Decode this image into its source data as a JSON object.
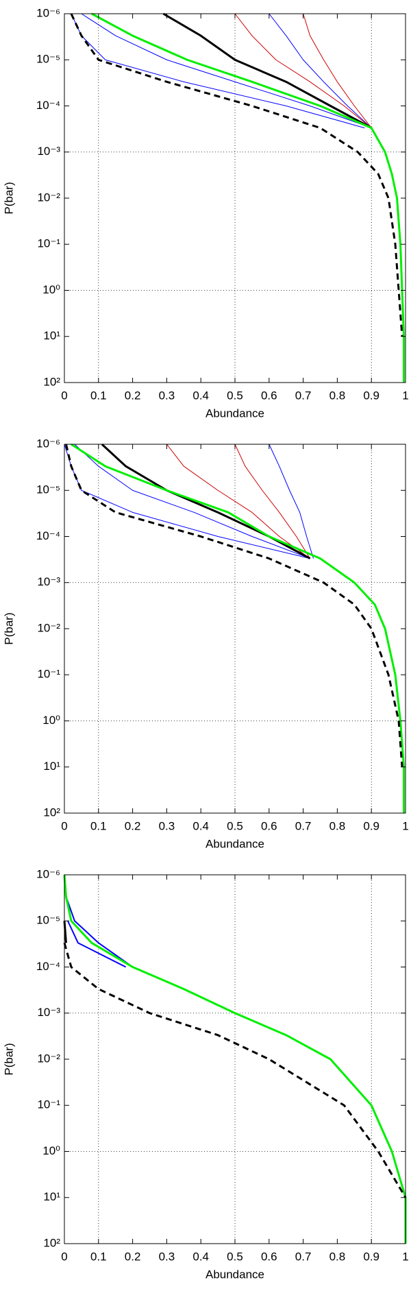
{
  "chart_data": [
    {
      "type": "line",
      "xlabel": "Abundance",
      "ylabel": "P(bar)",
      "xlim": [
        0,
        1
      ],
      "xticks": [
        0,
        0.1,
        0.2,
        0.3,
        0.4,
        0.5,
        0.6,
        0.7,
        0.8,
        0.9,
        1
      ],
      "ylim": [
        1e-06,
        100
      ],
      "log_y": true,
      "yticks": [
        {
          "value": 1e-06,
          "label": "10⁻⁶"
        },
        {
          "value": 1e-05,
          "label": "10⁻⁵"
        },
        {
          "value": 0.0001,
          "label": "10⁻⁴"
        },
        {
          "value": 0.001,
          "label": "10⁻³"
        },
        {
          "value": 0.01,
          "label": "10⁻²"
        },
        {
          "value": 0.1,
          "label": "10⁻¹"
        },
        {
          "value": 1,
          "label": "10⁰"
        },
        {
          "value": 10,
          "label": "10¹"
        },
        {
          "value": 100,
          "label": "10²"
        }
      ],
      "grid_x": [
        0.1,
        0.5,
        0.9
      ],
      "grid_y": [
        0.001,
        1
      ],
      "y": [
        1e-06,
        3e-06,
        1e-05,
        3e-05,
        0.0001,
        0.0003,
        0.001,
        0.003,
        0.01,
        0.1,
        1,
        10,
        100
      ],
      "series": [
        {
          "color": "#0000ff",
          "linewidth": 1,
          "x": [
            0.02,
            0.05,
            0.12,
            0.35,
            0.65,
            0.88,
            null,
            null,
            null,
            null,
            null,
            null,
            null
          ]
        },
        {
          "color": "#0000ff",
          "linewidth": 1,
          "x": [
            0.05,
            0.15,
            0.3,
            0.5,
            0.72,
            0.9,
            null,
            null,
            null,
            null,
            null,
            null,
            null
          ]
        },
        {
          "color": "#0000ff",
          "linewidth": 1,
          "x": [
            0.6,
            0.65,
            0.7,
            0.76,
            0.83,
            0.9,
            null,
            null,
            null,
            null,
            null,
            null,
            null
          ]
        },
        {
          "color": "#cc0000",
          "linewidth": 1,
          "x": [
            0.5,
            0.55,
            0.62,
            0.72,
            0.82,
            0.9,
            null,
            null,
            null,
            null,
            null,
            null,
            null
          ]
        },
        {
          "color": "#cc0000",
          "linewidth": 1,
          "x": [
            0.7,
            0.72,
            0.76,
            0.8,
            0.85,
            0.9,
            null,
            null,
            null,
            null,
            null,
            null,
            null
          ]
        },
        {
          "color": "#000000",
          "linewidth": 3,
          "x": [
            0.29,
            0.4,
            0.5,
            0.65,
            0.78,
            0.9,
            null,
            null,
            null,
            null,
            null,
            null,
            null
          ]
        },
        {
          "color": "#00ee00",
          "linewidth": 3,
          "x": [
            0.08,
            0.2,
            0.36,
            0.55,
            0.75,
            0.9,
            0.94,
            0.96,
            0.975,
            0.985,
            0.99,
            0.995,
            0.995
          ]
        },
        {
          "color": "#000000",
          "linewidth": 3,
          "dashed": true,
          "x": [
            0.02,
            0.05,
            0.1,
            0.3,
            0.55,
            0.75,
            0.86,
            0.92,
            0.95,
            0.97,
            0.98,
            0.99,
            null
          ]
        }
      ]
    },
    {
      "type": "line",
      "xlabel": "Abundance",
      "ylabel": "P(bar)",
      "xlim": [
        0,
        1
      ],
      "xticks": [
        0,
        0.1,
        0.2,
        0.3,
        0.4,
        0.5,
        0.6,
        0.7,
        0.8,
        0.9,
        1
      ],
      "ylim": [
        1e-06,
        100
      ],
      "log_y": true,
      "yticks": [
        {
          "value": 1e-06,
          "label": "10⁻⁶"
        },
        {
          "value": 1e-05,
          "label": "10⁻⁵"
        },
        {
          "value": 0.0001,
          "label": "10⁻⁴"
        },
        {
          "value": 0.001,
          "label": "10⁻³"
        },
        {
          "value": 0.01,
          "label": "10⁻²"
        },
        {
          "value": 0.1,
          "label": "10⁻¹"
        },
        {
          "value": 1,
          "label": "10⁰"
        },
        {
          "value": 10,
          "label": "10¹"
        },
        {
          "value": 100,
          "label": "10²"
        }
      ],
      "grid_x": [
        0.1,
        0.5,
        0.9
      ],
      "grid_y": [
        0.001,
        1
      ],
      "y": [
        1e-06,
        3e-06,
        1e-05,
        3e-05,
        0.0001,
        0.0003,
        0.001,
        0.003,
        0.01,
        0.1,
        1,
        10,
        100
      ],
      "series": [
        {
          "color": "#0000ff",
          "linewidth": 1,
          "x": [
            0.0,
            0.02,
            0.05,
            0.2,
            0.45,
            0.72,
            null,
            null,
            null,
            null,
            null,
            null,
            null
          ]
        },
        {
          "color": "#0000ff",
          "linewidth": 1,
          "x": [
            0.03,
            0.1,
            0.2,
            0.38,
            0.55,
            0.72,
            null,
            null,
            null,
            null,
            null,
            null,
            null
          ]
        },
        {
          "color": "#0000ff",
          "linewidth": 1,
          "x": [
            0.6,
            0.63,
            0.66,
            0.69,
            0.71,
            0.73,
            null,
            null,
            null,
            null,
            null,
            null,
            null
          ]
        },
        {
          "color": "#cc0000",
          "linewidth": 1,
          "x": [
            0.3,
            0.35,
            0.45,
            0.55,
            0.63,
            0.72,
            null,
            null,
            null,
            null,
            null,
            null,
            null
          ]
        },
        {
          "color": "#cc0000",
          "linewidth": 1,
          "x": [
            0.5,
            0.53,
            0.58,
            0.63,
            0.68,
            0.72,
            null,
            null,
            null,
            null,
            null,
            null,
            null
          ]
        },
        {
          "color": "#000000",
          "linewidth": 3,
          "x": [
            0.11,
            0.18,
            0.3,
            0.45,
            0.6,
            0.72,
            null,
            null,
            null,
            null,
            null,
            null,
            null
          ]
        },
        {
          "color": "#00ee00",
          "linewidth": 3,
          "x": [
            0.02,
            0.12,
            0.3,
            0.48,
            0.6,
            0.75,
            0.85,
            0.91,
            0.94,
            0.97,
            0.985,
            0.995,
            0.995
          ]
        },
        {
          "color": "#000000",
          "linewidth": 3,
          "dashed": true,
          "x": [
            0.005,
            0.02,
            0.05,
            0.15,
            0.4,
            0.6,
            0.76,
            0.85,
            0.9,
            0.95,
            0.98,
            0.99,
            null
          ]
        }
      ]
    },
    {
      "type": "line",
      "xlabel": "Abundance",
      "ylabel": "P(bar)",
      "xlim": [
        0,
        1
      ],
      "xticks": [
        0,
        0.1,
        0.2,
        0.3,
        0.4,
        0.5,
        0.6,
        0.7,
        0.8,
        0.9,
        1
      ],
      "ylim": [
        1e-06,
        100
      ],
      "log_y": true,
      "yticks": [
        {
          "value": 1e-06,
          "label": "10⁻⁶"
        },
        {
          "value": 1e-05,
          "label": "10⁻⁵"
        },
        {
          "value": 0.0001,
          "label": "10⁻⁴"
        },
        {
          "value": 0.001,
          "label": "10⁻³"
        },
        {
          "value": 0.01,
          "label": "10⁻²"
        },
        {
          "value": 0.1,
          "label": "10⁻¹"
        },
        {
          "value": 1,
          "label": "10⁰"
        },
        {
          "value": 10,
          "label": "10¹"
        },
        {
          "value": 100,
          "label": "10²"
        }
      ],
      "grid_x": [
        0.1,
        0.5,
        0.9
      ],
      "grid_y": [
        0.001,
        1
      ],
      "y": [
        1e-06,
        3e-06,
        1e-05,
        3e-05,
        0.0001,
        0.0003,
        0.001,
        0.003,
        0.01,
        0.1,
        1,
        10,
        100
      ],
      "series": [
        {
          "color": "#0000ff",
          "linewidth": 2,
          "x": [
            null,
            null,
            0.01,
            0.04,
            0.18,
            null,
            null,
            null,
            null,
            null,
            null,
            null,
            null
          ]
        },
        {
          "color": "#0000ff",
          "linewidth": 2,
          "x": [
            null,
            0.005,
            0.03,
            0.1,
            0.2,
            null,
            null,
            null,
            null,
            null,
            null,
            null,
            null
          ]
        },
        {
          "color": "#000000",
          "linewidth": 3,
          "x": [
            null,
            null,
            0.0,
            0.005,
            null,
            null,
            null,
            null,
            null,
            null,
            null,
            null,
            null
          ]
        },
        {
          "color": "#00ee00",
          "linewidth": 3,
          "x": [
            0.0,
            0.005,
            0.02,
            0.08,
            0.2,
            0.35,
            0.5,
            0.65,
            0.78,
            0.9,
            0.96,
            1.0,
            1.0
          ]
        },
        {
          "color": "#000000",
          "linewidth": 3,
          "dashed": true,
          "x": [
            null,
            null,
            null,
            0.0,
            0.02,
            0.1,
            0.25,
            0.45,
            0.6,
            0.82,
            0.92,
            1.0,
            null
          ]
        }
      ]
    }
  ]
}
